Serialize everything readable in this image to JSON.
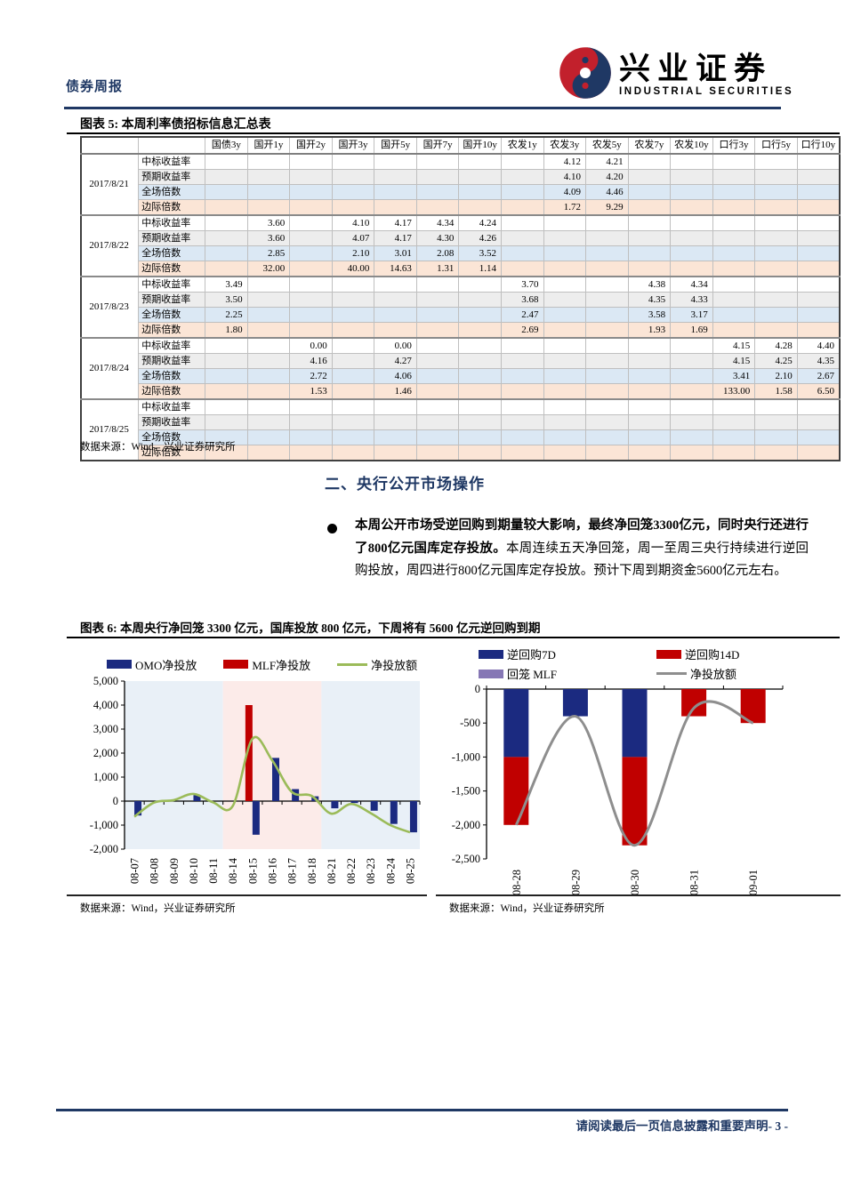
{
  "page": {
    "doc_type": "债券周报",
    "footer_disclaimer": "请阅读最后一页信息披露和重要声明",
    "footer_page": "- 3 -"
  },
  "logo": {
    "cn": "兴业证券",
    "en": "INDUSTRIAL SECURITIES"
  },
  "figure5": {
    "title": "图表 5: 本周利率债招标信息汇总表",
    "source": "数据来源：Wind，兴业证券研究所",
    "columns": [
      "国债3y",
      "国开1y",
      "国开2y",
      "国开3y",
      "国开5y",
      "国开7y",
      "国开10y",
      "农发1y",
      "农发3y",
      "农发5y",
      "农发7y",
      "农发10y",
      "口行3y",
      "口行5y",
      "口行10y"
    ],
    "row_labels": [
      "中标收益率",
      "预期收益率",
      "全场倍数",
      "边际倍数"
    ],
    "groups": [
      {
        "date": "2017/8/21",
        "rows": [
          [
            "",
            "",
            "",
            "",
            "",
            "",
            "",
            "",
            "4.12",
            "4.21",
            "",
            "",
            "",
            "",
            ""
          ],
          [
            "",
            "",
            "",
            "",
            "",
            "",
            "",
            "",
            "4.10",
            "4.20",
            "",
            "",
            "",
            "",
            ""
          ],
          [
            "",
            "",
            "",
            "",
            "",
            "",
            "",
            "",
            "4.09",
            "4.46",
            "",
            "",
            "",
            "",
            ""
          ],
          [
            "",
            "",
            "",
            "",
            "",
            "",
            "",
            "",
            "1.72",
            "9.29",
            "",
            "",
            "",
            "",
            ""
          ]
        ]
      },
      {
        "date": "2017/8/22",
        "rows": [
          [
            "",
            "3.60",
            "",
            "4.10",
            "4.17",
            "4.34",
            "4.24",
            "",
            "",
            "",
            "",
            "",
            "",
            "",
            ""
          ],
          [
            "",
            "3.60",
            "",
            "4.07",
            "4.17",
            "4.30",
            "4.26",
            "",
            "",
            "",
            "",
            "",
            "",
            "",
            ""
          ],
          [
            "",
            "2.85",
            "",
            "2.10",
            "3.01",
            "2.08",
            "3.52",
            "",
            "",
            "",
            "",
            "",
            "",
            "",
            ""
          ],
          [
            "",
            "32.00",
            "",
            "40.00",
            "14.63",
            "1.31",
            "1.14",
            "",
            "",
            "",
            "",
            "",
            "",
            "",
            ""
          ]
        ]
      },
      {
        "date": "2017/8/23",
        "rows": [
          [
            "3.49",
            "",
            "",
            "",
            "",
            "",
            "",
            "3.70",
            "",
            "",
            "4.38",
            "4.34",
            "",
            "",
            ""
          ],
          [
            "3.50",
            "",
            "",
            "",
            "",
            "",
            "",
            "3.68",
            "",
            "",
            "4.35",
            "4.33",
            "",
            "",
            ""
          ],
          [
            "2.25",
            "",
            "",
            "",
            "",
            "",
            "",
            "2.47",
            "",
            "",
            "3.58",
            "3.17",
            "",
            "",
            ""
          ],
          [
            "1.80",
            "",
            "",
            "",
            "",
            "",
            "",
            "2.69",
            "",
            "",
            "1.93",
            "1.69",
            "",
            "",
            ""
          ]
        ]
      },
      {
        "date": "2017/8/24",
        "rows": [
          [
            "",
            "",
            "0.00",
            "",
            "0.00",
            "",
            "",
            "",
            "",
            "",
            "",
            "",
            "4.15",
            "4.28",
            "4.40"
          ],
          [
            "",
            "",
            "4.16",
            "",
            "4.27",
            "",
            "",
            "",
            "",
            "",
            "",
            "",
            "4.15",
            "4.25",
            "4.35"
          ],
          [
            "",
            "",
            "2.72",
            "",
            "4.06",
            "",
            "",
            "",
            "",
            "",
            "",
            "",
            "3.41",
            "2.10",
            "2.67"
          ],
          [
            "",
            "",
            "1.53",
            "",
            "1.46",
            "",
            "",
            "",
            "",
            "",
            "",
            "",
            "133.00",
            "1.58",
            "6.50"
          ]
        ]
      },
      {
        "date": "2017/8/25",
        "rows": [
          [
            "",
            "",
            "",
            "",
            "",
            "",
            "",
            "",
            "",
            "",
            "",
            "",
            "",
            "",
            ""
          ],
          [
            "",
            "",
            "",
            "",
            "",
            "",
            "",
            "",
            "",
            "",
            "",
            "",
            "",
            "",
            ""
          ],
          [
            "",
            "",
            "",
            "",
            "",
            "",
            "",
            "",
            "",
            "",
            "",
            "",
            "",
            "",
            ""
          ],
          [
            "",
            "",
            "",
            "",
            "",
            "",
            "",
            "",
            "",
            "",
            "",
            "",
            "",
            "",
            ""
          ]
        ]
      }
    ]
  },
  "section2": {
    "heading": "二、央行公开市场操作",
    "bullet_bold": "本周公开市场受逆回购到期量较大影响，最终净回笼3300亿元，同时央行还进行了800亿元国库定存投放。",
    "bullet_rest": "本周连续五天净回笼，周一至周三央行持续进行逆回购投放，周四进行800亿元国库定存投放。预计下周到期资金5600亿元左右。"
  },
  "figure6": {
    "title": "图表 6: 本周央行净回笼 3300 亿元，国库投放 800 亿元，下周将有 5600 亿元逆回购到期",
    "source_left": "数据来源：Wind，兴业证券研究所",
    "source_right": "数据来源：Wind，兴业证券研究所"
  },
  "chart_data": [
    {
      "type": "bar",
      "subtype": "grouped-bar-with-line",
      "categories": [
        "08-07",
        "08-08",
        "08-09",
        "08-10",
        "08-11",
        "08-14",
        "08-15",
        "08-16",
        "08-17",
        "08-18",
        "08-21",
        "08-22",
        "08-23",
        "08-24",
        "08-25"
      ],
      "series": [
        {
          "name": "OMO净投放",
          "kind": "bar",
          "color": "#1B2A80",
          "values": [
            -600,
            0,
            0,
            250,
            0,
            0,
            -1400,
            1800,
            500,
            200,
            -300,
            -80,
            -400,
            -950,
            -1300
          ]
        },
        {
          "name": "MLF净投放",
          "kind": "bar",
          "color": "#C00000",
          "values": [
            0,
            0,
            0,
            0,
            0,
            0,
            4000,
            0,
            0,
            0,
            0,
            0,
            0,
            0,
            0
          ]
        },
        {
          "name": "净投放额",
          "kind": "line",
          "color": "#9BBB59",
          "values": [
            -650,
            -60,
            40,
            300,
            -50,
            -200,
            2600,
            1700,
            380,
            220,
            -520,
            -120,
            -500,
            -1000,
            -1300
          ]
        }
      ],
      "ylim": [
        -2000,
        5000
      ],
      "ytick_step": 1000,
      "bands": [
        {
          "from": 0,
          "to": 4,
          "color": "#E9F0F7"
        },
        {
          "from": 5,
          "to": 9,
          "color": "#FCEBE9"
        },
        {
          "from": 10,
          "to": 14,
          "color": "#E9F0F7"
        }
      ],
      "legend_position": "top"
    },
    {
      "type": "bar",
      "subtype": "stacked-bar-with-line",
      "categories": [
        "08-28",
        "08-29",
        "08-30",
        "08-31",
        "09-01"
      ],
      "series": [
        {
          "name": "逆回购7D",
          "kind": "bar",
          "color": "#1B2A80",
          "values": [
            -1000,
            -400,
            -1000,
            0,
            0
          ]
        },
        {
          "name": "逆回购14D",
          "kind": "bar",
          "color": "#C00000",
          "values": [
            -1000,
            0,
            -1300,
            -400,
            -500
          ]
        },
        {
          "name": "回笼 MLF",
          "kind": "bar",
          "color": "#8677B5",
          "values": [
            0,
            0,
            0,
            0,
            0
          ]
        },
        {
          "name": "净投放额",
          "kind": "line",
          "color": "#8E8E8E",
          "values": [
            -2000,
            -400,
            -2300,
            -280,
            -500
          ]
        }
      ],
      "ylim": [
        -2500,
        0
      ],
      "ytick_step": 500,
      "legend_position": "top"
    }
  ]
}
